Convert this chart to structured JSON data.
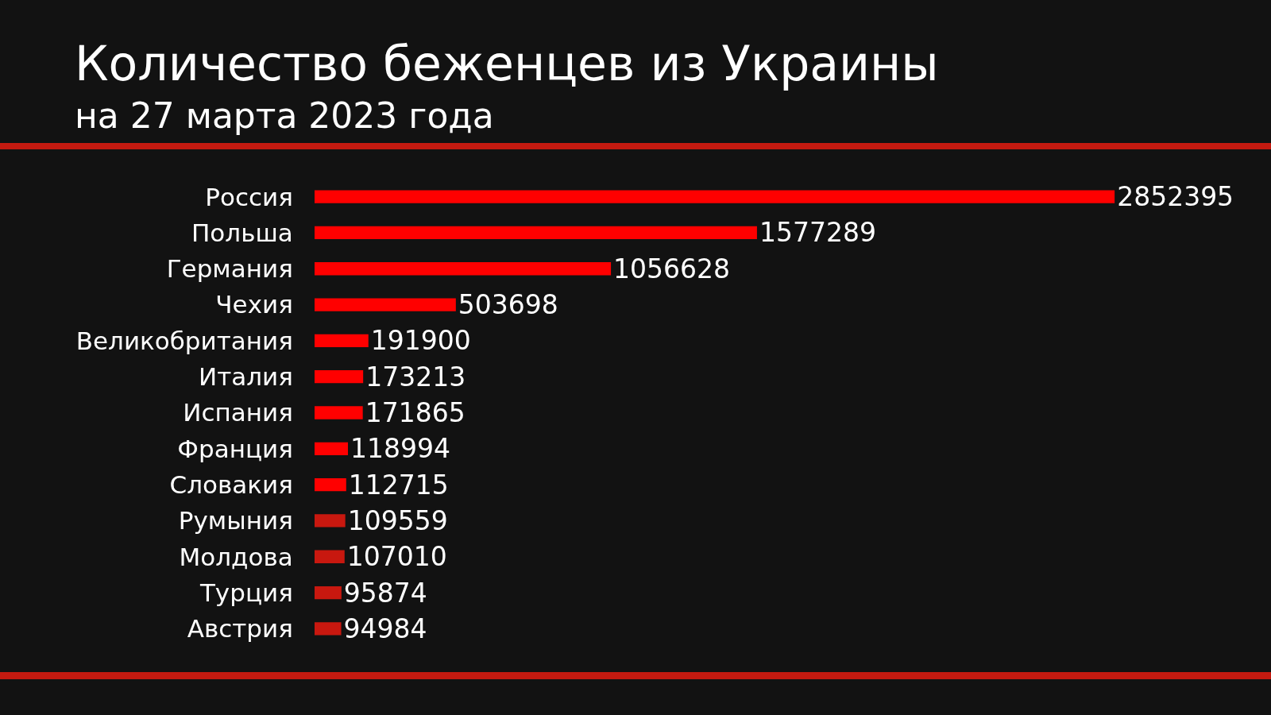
{
  "chart_data": {
    "type": "bar",
    "orientation": "horizontal",
    "title": "Количество беженцев из Украины",
    "subtitle": "на 27 марта 2023 года",
    "categories": [
      "Россия",
      "Польша",
      "Германия",
      "Чехия",
      "Великобритания",
      "Италия",
      "Испания",
      "Франция",
      "Словакия",
      "Румыния",
      "Молдова",
      "Турция",
      "Австрия"
    ],
    "values": [
      2852395,
      1577289,
      1056628,
      503698,
      191900,
      173213,
      171865,
      118994,
      112715,
      109559,
      107010,
      95874,
      94984
    ],
    "colors": [
      "#ff0000",
      "#ff0000",
      "#ff0000",
      "#ff0000",
      "#ff0000",
      "#ff0000",
      "#ff0000",
      "#ff0000",
      "#ff0000",
      "#c8180f",
      "#c8180f",
      "#c8180f",
      "#c8180f"
    ],
    "data_labels": true,
    "tick_labels": "y"
  }
}
